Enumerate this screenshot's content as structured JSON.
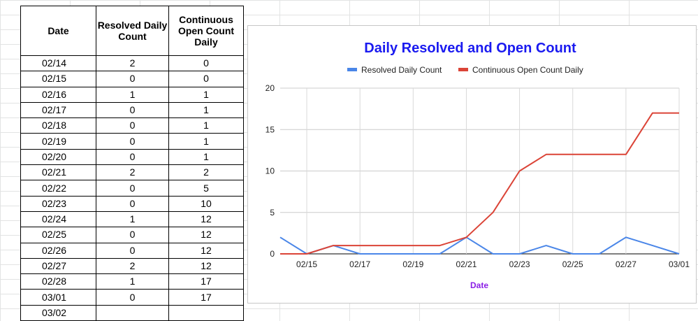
{
  "table": {
    "headers": [
      "Date",
      "Resolved Daily Count",
      "Continuous Open Count Daily"
    ],
    "rows": [
      [
        "02/14",
        "2",
        "0"
      ],
      [
        "02/15",
        "0",
        "0"
      ],
      [
        "02/16",
        "1",
        "1"
      ],
      [
        "02/17",
        "0",
        "1"
      ],
      [
        "02/18",
        "0",
        "1"
      ],
      [
        "02/19",
        "0",
        "1"
      ],
      [
        "02/20",
        "0",
        "1"
      ],
      [
        "02/21",
        "2",
        "2"
      ],
      [
        "02/22",
        "0",
        "5"
      ],
      [
        "02/23",
        "0",
        "10"
      ],
      [
        "02/24",
        "1",
        "12"
      ],
      [
        "02/25",
        "0",
        "12"
      ],
      [
        "02/26",
        "0",
        "12"
      ],
      [
        "02/27",
        "2",
        "12"
      ],
      [
        "02/28",
        "1",
        "17"
      ],
      [
        "03/01",
        "0",
        "17"
      ],
      [
        "03/02",
        "",
        ""
      ]
    ]
  },
  "chart_data": {
    "type": "line",
    "title": "Daily Resolved and Open Count",
    "xlabel": "Date",
    "ylabel": "",
    "x": [
      "02/14",
      "02/15",
      "02/16",
      "02/17",
      "02/18",
      "02/19",
      "02/20",
      "02/21",
      "02/22",
      "02/23",
      "02/24",
      "02/25",
      "02/26",
      "02/27",
      "02/28",
      "03/01"
    ],
    "x_tick_labels": [
      "02/15",
      "02/17",
      "02/19",
      "02/21",
      "02/23",
      "02/25",
      "02/27",
      "03/01"
    ],
    "ylim": [
      0,
      20
    ],
    "y_ticks": [
      0,
      5,
      10,
      15,
      20
    ],
    "grid": true,
    "legend_position": "top",
    "title_color": "#1a1af0",
    "xlabel_color": "#8a1ee6",
    "series": [
      {
        "name": "Resolved Daily Count",
        "color": "#4a86e8",
        "values": [
          2,
          0,
          1,
          0,
          0,
          0,
          0,
          2,
          0,
          0,
          1,
          0,
          0,
          2,
          1,
          0
        ]
      },
      {
        "name": "Continuous Open Count Daily",
        "color": "#db4437",
        "values": [
          0,
          0,
          1,
          1,
          1,
          1,
          1,
          2,
          5,
          10,
          12,
          12,
          12,
          12,
          17,
          17
        ]
      }
    ]
  }
}
